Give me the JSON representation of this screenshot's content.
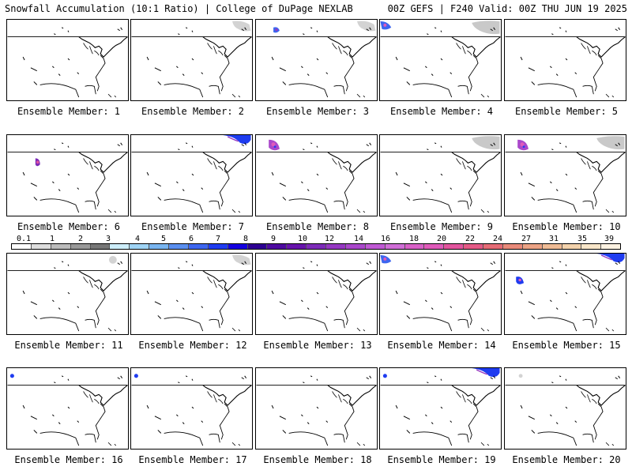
{
  "header": {
    "left": "Snowfall Accumulation (10:1 Ratio) | College of DuPage NEXLAB",
    "right": "00Z GEFS | F240 Valid: 00Z THU JUN 19 2025"
  },
  "members": [
    {
      "label": "Ensemble Member: 1",
      "snow": []
    },
    {
      "label": "Ensemble Member: 2",
      "snow": [
        "gray-northeast-corner"
      ]
    },
    {
      "label": "Ensemble Member: 3",
      "snow": [
        "blue-northwest-rockies",
        "gray-northeast-corner"
      ]
    },
    {
      "label": "Ensemble Member: 4",
      "snow": [
        "blue-northwest-corner",
        "gray-northeast-canada"
      ]
    },
    {
      "label": "Ensemble Member: 5",
      "snow": []
    },
    {
      "label": "Ensemble Member: 6",
      "snow": [
        "purple-rockies-spot"
      ]
    },
    {
      "label": "Ensemble Member: 7",
      "snow": [
        "blue-northeast-canada"
      ]
    },
    {
      "label": "Ensemble Member: 8",
      "snow": [
        "magenta-northwest-rockies"
      ]
    },
    {
      "label": "Ensemble Member: 9",
      "snow": [
        "gray-northeast-canada"
      ]
    },
    {
      "label": "Ensemble Member: 10",
      "snow": [
        "magenta-northwest-rockies",
        "gray-northeast-canada"
      ]
    },
    {
      "label": "Ensemble Member: 11",
      "snow": [
        "gray-canada-spot"
      ]
    },
    {
      "label": "Ensemble Member: 12",
      "snow": [
        "gray-northeast-corner"
      ]
    },
    {
      "label": "Ensemble Member: 13",
      "snow": []
    },
    {
      "label": "Ensemble Member: 14",
      "snow": [
        "blue-northwest-corner"
      ]
    },
    {
      "label": "Ensemble Member: 15",
      "snow": [
        "blue-northeast-canada",
        "blue-rockies-spot"
      ]
    },
    {
      "label": "Ensemble Member: 16",
      "snow": [
        "blue-northwest-spot"
      ]
    },
    {
      "label": "Ensemble Member: 17",
      "snow": [
        "blue-northwest-spot"
      ]
    },
    {
      "label": "Ensemble Member: 18",
      "snow": []
    },
    {
      "label": "Ensemble Member: 19",
      "snow": [
        "blue-northeast-canada",
        "blue-northwest-spot"
      ]
    },
    {
      "label": "Ensemble Member: 20",
      "snow": [
        "gray-northwest-spot"
      ]
    }
  ],
  "colorbar": {
    "labels": [
      "0.1",
      "1",
      "2",
      "3",
      "4",
      "5",
      "6",
      "7",
      "8",
      "9",
      "10",
      "12",
      "14",
      "16",
      "18",
      "20",
      "22",
      "24",
      "27",
      "31",
      "35",
      "39"
    ],
    "colors": [
      "#ffffff",
      "#dddddd",
      "#bbbbbb",
      "#999999",
      "#777777",
      "#cdeefa",
      "#9fd4f5",
      "#79b5f0",
      "#5a8ff0",
      "#3d66ef",
      "#1f3cf0",
      "#1500e0",
      "#2d0092",
      "#4e0aa0",
      "#6714ac",
      "#7d2bb8",
      "#9538c2",
      "#aa48cb",
      "#bf59d4",
      "#d06ed7",
      "#d861c7",
      "#e05bba",
      "#e2559e",
      "#e45a86",
      "#e66c76",
      "#e98a7a",
      "#eca385",
      "#efbb95",
      "#f3d2ac",
      "#f8e6c9",
      "#fcf2e2"
    ]
  }
}
